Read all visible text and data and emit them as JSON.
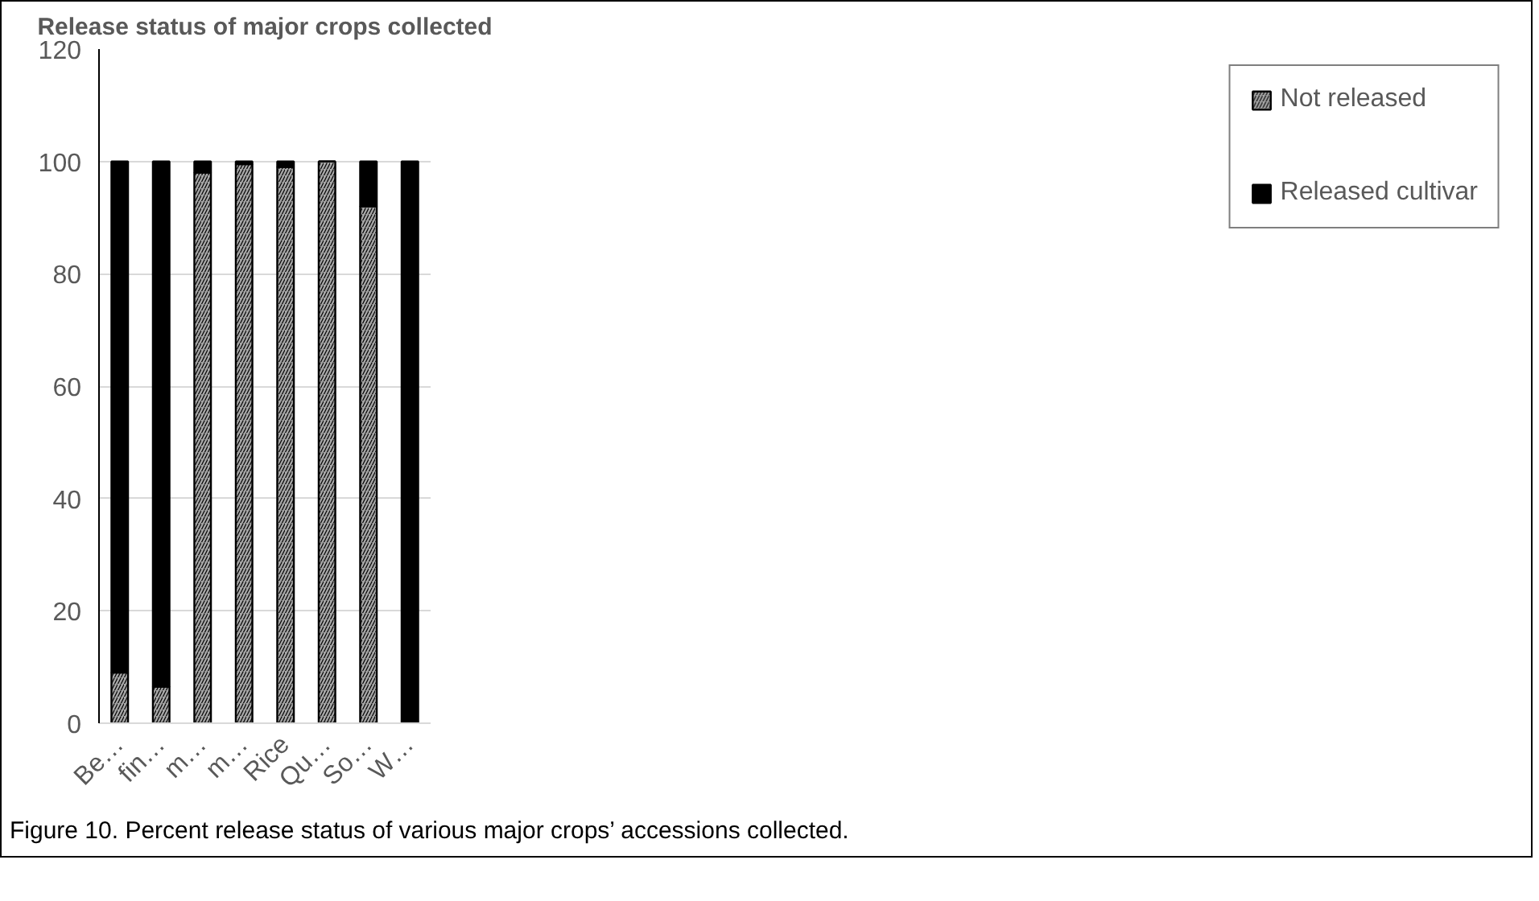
{
  "chart_data": {
    "type": "bar",
    "stacked": true,
    "title": "Release status of major crops collected",
    "categories": [
      "Be…",
      "fin…",
      "m…",
      "m…",
      "Rice",
      "Qu…",
      "So…",
      "W…"
    ],
    "series": [
      {
        "name": "Not released",
        "color": "#a6a6a6",
        "values": [
          9,
          6.5,
          98,
          99.5,
          99,
          100,
          92,
          0
        ]
      },
      {
        "name": "Released cultivar",
        "color": "#000000",
        "values": [
          91,
          93.5,
          2,
          0.5,
          1,
          0,
          8,
          100
        ]
      }
    ],
    "ylim": [
      0,
      120
    ],
    "yticks": [
      0,
      20,
      40,
      60,
      80,
      100,
      120
    ],
    "grid": "y",
    "legend": "right",
    "annotations": [
      "Figure 10. Percent release status of various major crops’ accessions collected."
    ]
  }
}
